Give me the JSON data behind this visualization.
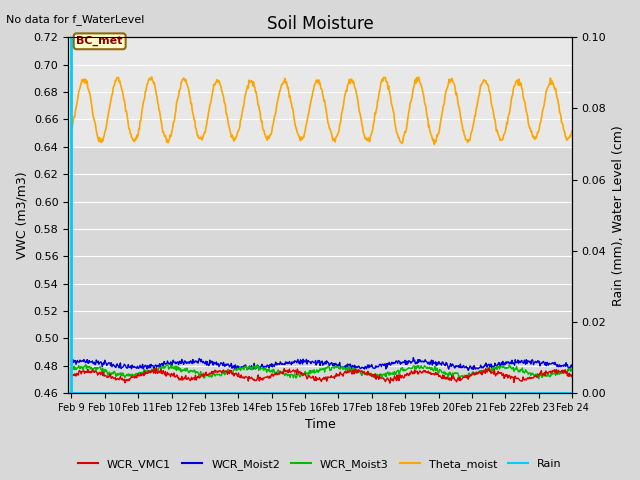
{
  "title": "Soil Moisture",
  "top_left_text": "No data for f_WaterLevel",
  "xlabel": "Time",
  "ylabel_left": "VWC (m3/m3)",
  "ylabel_right": "Rain (mm), Water Level (cm)",
  "ylim_left": [
    0.46,
    0.72
  ],
  "ylim_right": [
    0.0,
    0.1
  ],
  "yticks_left": [
    0.46,
    0.48,
    0.5,
    0.52,
    0.54,
    0.56,
    0.58,
    0.6,
    0.62,
    0.64,
    0.66,
    0.68,
    0.7,
    0.72
  ],
  "yticks_right": [
    0.0,
    0.02,
    0.04,
    0.06,
    0.08,
    0.1
  ],
  "x_tick_labels": [
    "Feb 9",
    "Feb 10",
    "Feb 11",
    "Feb 12",
    "Feb 13",
    "Feb 14",
    "Feb 15",
    "Feb 16",
    "Feb 17",
    "Feb 18",
    "Feb 19",
    "Feb 20",
    "Feb 21",
    "Feb 22",
    "Feb 23",
    "Feb 24"
  ],
  "fig_bg_color": "#d8d8d8",
  "plot_bg_color": "#d8d8d8",
  "upper_band_color": "#e8e8e8",
  "grid_color": "#ffffff",
  "annotation_box_text": "BC_met",
  "annotation_box_facecolor": "#ffffcc",
  "annotation_box_edgecolor": "#8B6914",
  "WCR_VMC1_color": "#dd0000",
  "WCR_Moist2_color": "#0000dd",
  "WCR_Moist3_color": "#00bb00",
  "Theta_moist_color": "#FFA500",
  "Rain_color": "#00ccff",
  "legend_labels": [
    "WCR_VMC1",
    "WCR_Moist2",
    "WCR_Moist3",
    "Theta_moist",
    "Rain"
  ],
  "tick_fontsize": 8,
  "label_fontsize": 9,
  "title_fontsize": 12
}
